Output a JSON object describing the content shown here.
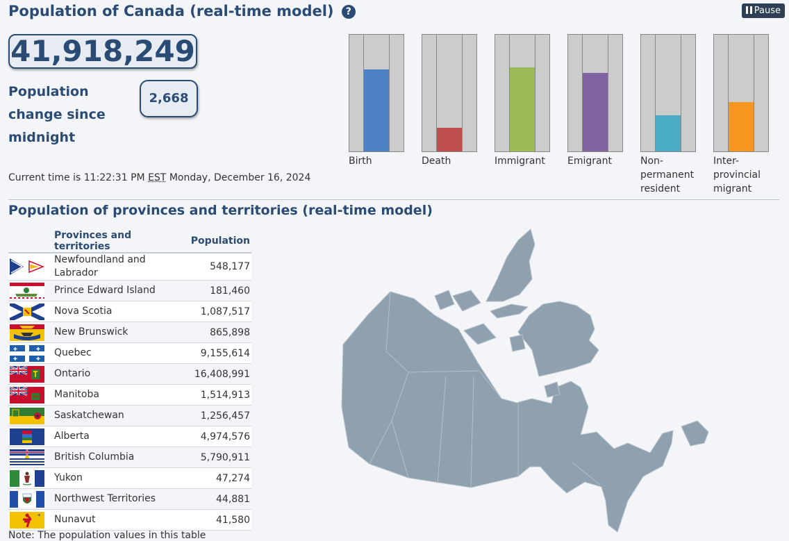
{
  "page": {
    "title": "Population of Canada (real-time model)",
    "pause_label": "Pause"
  },
  "counter": {
    "total": "41,918,249",
    "change_label": "Population change since midnight",
    "change_value": "2,668"
  },
  "time": {
    "prefix": "Current time is 11:22:31 PM",
    "zone": "EST",
    "date": "Monday, December 16, 2024"
  },
  "components": [
    {
      "label": "Birth",
      "level": 0.7,
      "color": "#4e81c4"
    },
    {
      "label": "Death",
      "level": 0.2,
      "color": "#c0504d"
    },
    {
      "label": "Immigrant",
      "level": 0.72,
      "color": "#9bbb59"
    },
    {
      "label": "Emigrant",
      "level": 0.67,
      "color": "#8064a2"
    },
    {
      "label": "Non-permanent resident",
      "label_lines": [
        "Non-",
        "permanent",
        "resident"
      ],
      "level": 0.31,
      "color": "#4bacc6"
    },
    {
      "label": "Inter-provincial migrant",
      "label_lines": [
        "Inter-",
        "provincial",
        "migrant"
      ],
      "level": 0.42,
      "color": "#f79620"
    }
  ],
  "provinces": {
    "title": "Population of provinces and territories (real-time model)",
    "col_name": "Provinces and territories",
    "col_pop": "Population",
    "rows": [
      {
        "name": "Newfoundland and Labrador",
        "pop": "548,177",
        "flag": "newfoundland-labrador-flag"
      },
      {
        "name": "Prince Edward Island",
        "pop": "181,460",
        "flag": "pei-flag"
      },
      {
        "name": "Nova Scotia",
        "pop": "1,087,517",
        "flag": "nova-scotia-flag"
      },
      {
        "name": "New Brunswick",
        "pop": "865,898",
        "flag": "new-brunswick-flag"
      },
      {
        "name": "Quebec",
        "pop": "9,155,614",
        "flag": "quebec-flag"
      },
      {
        "name": "Ontario",
        "pop": "16,408,991",
        "flag": "ontario-flag"
      },
      {
        "name": "Manitoba",
        "pop": "1,514,913",
        "flag": "manitoba-flag"
      },
      {
        "name": "Saskatchewan",
        "pop": "1,256,457",
        "flag": "saskatchewan-flag"
      },
      {
        "name": "Alberta",
        "pop": "4,974,576",
        "flag": "alberta-flag"
      },
      {
        "name": "British Columbia",
        "pop": "5,790,911",
        "flag": "british-columbia-flag"
      },
      {
        "name": "Yukon",
        "pop": "47,274",
        "flag": "yukon-flag"
      },
      {
        "name": "Northwest Territories",
        "pop": "44,881",
        "flag": "northwest-territories-flag"
      },
      {
        "name": "Nunavut",
        "pop": "41,580",
        "flag": "nunavut-flag"
      }
    ],
    "note": "Note: The population values in this table"
  },
  "map": {
    "fill": "#8fa0ae",
    "border": "#b4c0ca"
  }
}
